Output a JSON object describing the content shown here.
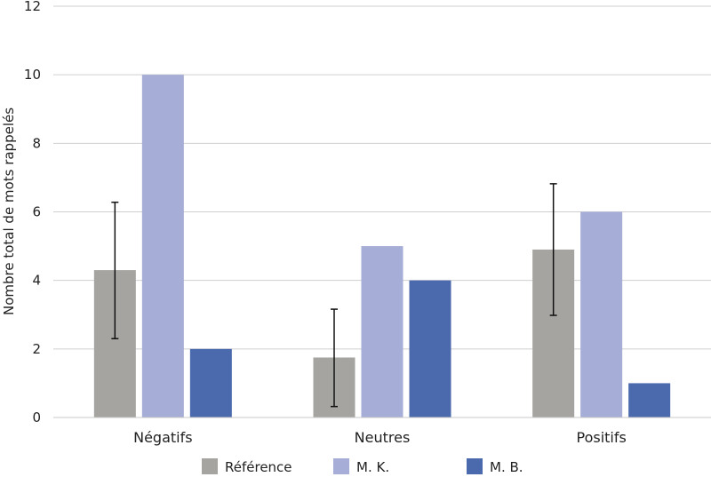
{
  "chart_data": {
    "type": "bar",
    "title": "",
    "xlabel": "",
    "ylabel": "Nombre total de mots rappelés",
    "ylim": [
      0,
      12
    ],
    "yticks": [
      0,
      2,
      4,
      6,
      8,
      10,
      12
    ],
    "grid": true,
    "legend_position": "bottom",
    "categories": [
      "Négatifs",
      "Neutres",
      "Positifs"
    ],
    "series": [
      {
        "name": "Référence",
        "color": "#a6a4a1",
        "values": [
          4.3,
          1.75,
          4.9
        ],
        "error": [
          [
            2.3,
            6.28
          ],
          [
            0.32,
            3.16
          ],
          [
            2.98,
            6.82
          ]
        ]
      },
      {
        "name": "M. K.",
        "color": "#a6add6",
        "values": [
          10,
          5,
          6
        ]
      },
      {
        "name": "M. B.",
        "color": "#4b69ad",
        "values": [
          2,
          4,
          1
        ]
      }
    ]
  }
}
